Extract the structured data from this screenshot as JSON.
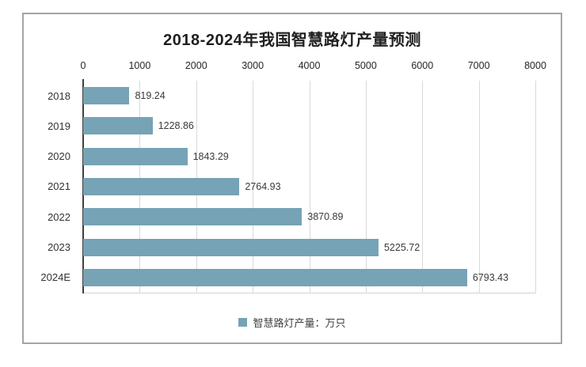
{
  "title": "2018-2024年我国智慧路灯产量预测",
  "legend": {
    "label": "智慧路灯产量：万只",
    "marker_color": "#76a3b5"
  },
  "colors": {
    "bar": "#76a3b5",
    "gridline": "#d9d9d9",
    "axis_line": "#3f3f3f",
    "frame_border": "#a5a5a5",
    "title_text": "#1f1f1f",
    "label_text": "#3a3a3a"
  },
  "chart_data": {
    "type": "bar",
    "orientation": "horizontal",
    "title": "2018-2024年我国智慧路灯产量预测",
    "categories": [
      "2018",
      "2019",
      "2020",
      "2021",
      "2022",
      "2023",
      "2024E"
    ],
    "values": [
      819.24,
      1228.86,
      1843.29,
      2764.93,
      3870.89,
      5225.72,
      6793.43
    ],
    "value_labels": [
      "819.24",
      "1228.86",
      "1843.29",
      "2764.93",
      "3870.89",
      "5225.72",
      "6793.43"
    ],
    "series_name": "智慧路灯产量：万只",
    "unit": "万只",
    "xlabel": "",
    "ylabel": "",
    "xlim": [
      0,
      8000
    ],
    "x_ticks": [
      0,
      1000,
      2000,
      3000,
      4000,
      5000,
      6000,
      7000,
      8000
    ],
    "grid": true,
    "gridlines": "vertical",
    "axis_position": "top",
    "legend_position": "bottom",
    "bar_color": "#76a3b5"
  }
}
